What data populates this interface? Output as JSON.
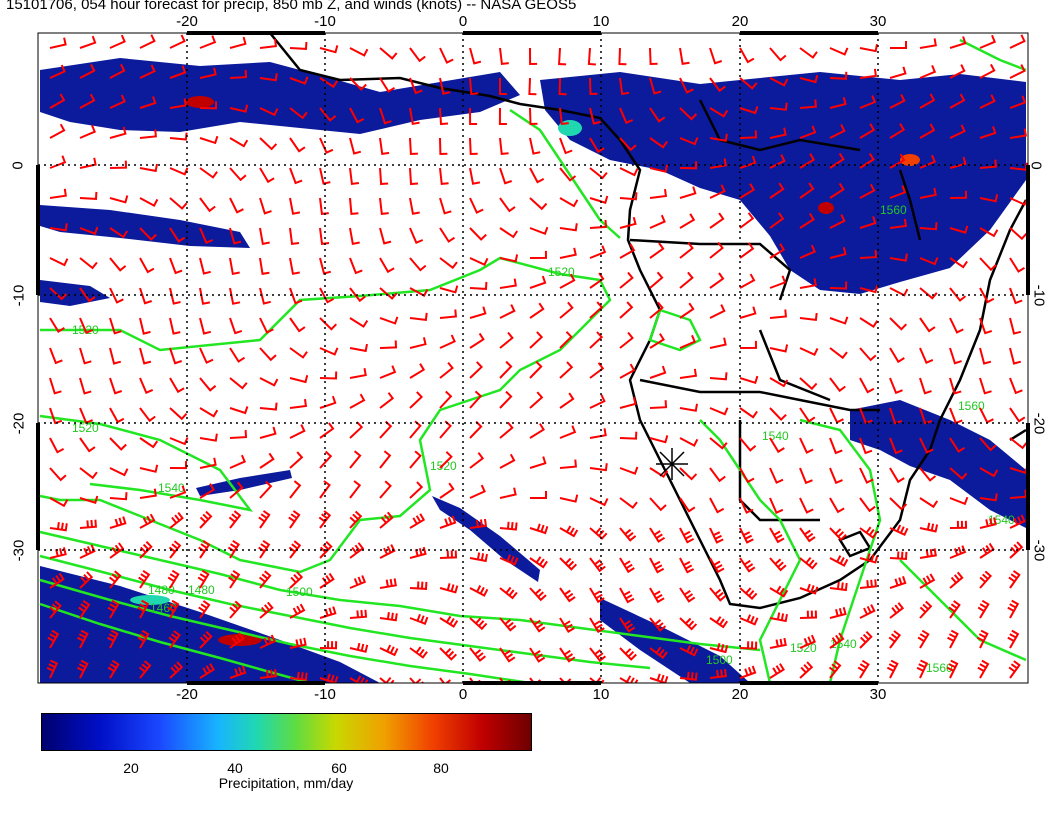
{
  "title": "15101706, 054 hour forecast for precip, 850 mb Z, and winds (knots) -- NASA GEOS5",
  "axes": {
    "top_lon_ticks": [
      "-20",
      "-10",
      "0",
      "10",
      "20",
      "30"
    ],
    "bottom_lon_ticks": [
      "-20",
      "-10",
      "0",
      "10",
      "20",
      "30"
    ],
    "left_lat_ticks": [
      "0",
      "-10",
      "-20",
      "-30"
    ],
    "right_lat_ticks": [
      "0",
      "-10",
      "-20",
      "-30"
    ],
    "lon_range": [
      -30,
      40
    ],
    "lat_range": [
      -39,
      10
    ],
    "grid": "dotted"
  },
  "colorbar": {
    "ticks": [
      "20",
      "40",
      "60",
      "80"
    ],
    "range": [
      0,
      100
    ],
    "label": "Precipitation, mm/day"
  },
  "contour_labels": [
    "1520",
    "1520",
    "1520",
    "1540",
    "1520",
    "1560",
    "1560",
    "1540",
    "1500",
    "1520",
    "1540",
    "1560",
    "1480",
    "1460",
    "1480",
    "1500",
    "1540"
  ],
  "colors": {
    "contours": "#22e622",
    "wind_barbs": "#ff0000",
    "coastlines": "#000000",
    "precip_low": "#0a1a9a",
    "precip_high": "#c80000"
  },
  "marker": "star-icon"
}
